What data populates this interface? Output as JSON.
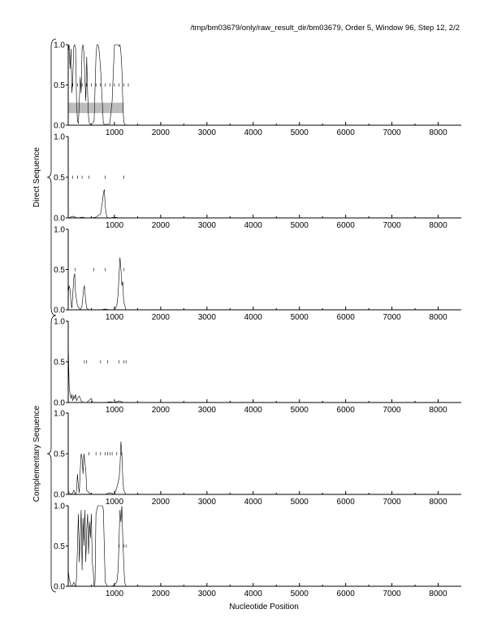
{
  "header": {
    "title": "/tmp/bm03679/only/raw_result_dir/bm03679, Order 5, Window 96, Step 12, 2/2"
  },
  "groups": [
    {
      "label": "Direct Sequence",
      "panels": [
        0,
        1,
        2
      ]
    },
    {
      "label": "Complementary Sequence",
      "panels": [
        3,
        4,
        5
      ]
    }
  ],
  "chart_data": {
    "type": "line",
    "title": "/tmp/bm03679/only/raw_result_dir/bm03679, Order 5, Window 96, Step 12, 2/2",
    "xlabel": "Nucleotide Position",
    "ylabel": "",
    "xlim": [
      0,
      8500
    ],
    "ylim": [
      0,
      1
    ],
    "x_ticks": [
      1000,
      2000,
      3000,
      4000,
      5000,
      6000,
      7000,
      8000
    ],
    "x_tick_labels": [
      "1000",
      "2000",
      "3000",
      "4000",
      "5000",
      "6000",
      "7000",
      "8000"
    ],
    "y_ticks": [
      0,
      0.5,
      1
    ],
    "y_tick_labels": [
      "0.0",
      "0.5",
      "1.0"
    ],
    "grid": false,
    "colors": {
      "line": "#000000",
      "shade": "#bdbdbd",
      "axis": "#000000"
    },
    "panels": [
      {
        "group": "Direct Sequence",
        "shaded_region": {
          "x": [
            0,
            1200
          ],
          "y": [
            0.15,
            0.28
          ]
        },
        "markers_at_half": [
          100,
          200,
          300,
          400,
          500,
          600,
          700,
          800,
          900,
          1000,
          1100,
          1200,
          1300
        ],
        "series": [
          {
            "x": [
              0,
              20,
              40,
              60,
              80,
              100,
              120,
              140,
              160,
              180,
              200,
              220,
              240,
              260,
              280,
              300,
              320,
              340,
              360,
              380,
              400,
              420,
              440,
              460,
              480,
              520,
              560,
              600,
              620,
              640,
              660,
              700,
              760,
              800,
              840,
              900,
              950,
              1000,
              1040,
              1080,
              1100,
              1120,
              1140,
              1160,
              1180,
              1200,
              1220,
              1240,
              1300
            ],
            "y": [
              0.9,
              1.0,
              0.7,
              0.95,
              0.4,
              0.6,
              0.98,
              1.0,
              0.95,
              0.3,
              0.05,
              0.02,
              0.3,
              0.6,
              0.4,
              0.95,
              1.0,
              0.9,
              0.6,
              0.3,
              0.85,
              0.4,
              0.1,
              0.02,
              0.01,
              0.02,
              0.05,
              0.85,
              1.0,
              1.0,
              0.98,
              0.7,
              0.02,
              0.01,
              0.01,
              0.02,
              0.3,
              1.0,
              1.0,
              1.0,
              0.98,
              1.0,
              0.9,
              0.7,
              0.3,
              0.05,
              0.01,
              0.0,
              0.0
            ]
          }
        ]
      },
      {
        "group": "Direct Sequence",
        "markers_at_half": [
          100,
          200,
          300,
          450,
          800,
          1200
        ],
        "series": [
          {
            "x": [
              0,
              100,
              200,
              300,
              400,
              500,
              600,
              700,
              740,
              760,
              780,
              800,
              820,
              840,
              860,
              900,
              1000,
              1100,
              1200,
              1300
            ],
            "y": [
              0.0,
              0.02,
              0.0,
              0.01,
              0.0,
              0.0,
              0.01,
              0.05,
              0.2,
              0.3,
              0.35,
              0.15,
              0.05,
              0.01,
              0.0,
              0.0,
              0.01,
              0.0,
              0.0,
              0.0
            ]
          }
        ]
      },
      {
        "group": "Direct Sequence",
        "markers_at_half": [
          150,
          550,
          800,
          1200
        ],
        "series": [
          {
            "x": [
              0,
              20,
              40,
              60,
              80,
              100,
              120,
              140,
              160,
              200,
              260,
              300,
              330,
              350,
              380,
              400,
              450,
              500,
              600,
              700,
              800,
              900,
              1000,
              1050,
              1080,
              1100,
              1120,
              1140,
              1160,
              1180,
              1200,
              1250,
              1300
            ],
            "y": [
              0.2,
              0.3,
              0.25,
              0.1,
              0.02,
              0.2,
              0.4,
              0.45,
              0.2,
              0.05,
              0.0,
              0.05,
              0.25,
              0.3,
              0.1,
              0.02,
              0.0,
              0.0,
              0.0,
              0.0,
              0.01,
              0.0,
              0.0,
              0.05,
              0.2,
              0.45,
              0.65,
              0.5,
              0.3,
              0.35,
              0.1,
              0.0,
              0.0
            ]
          }
        ]
      },
      {
        "group": "Complementary Sequence",
        "markers_at_half": [
          350,
          400,
          700,
          850,
          1100,
          1200,
          1250
        ],
        "series": [
          {
            "x": [
              0,
              20,
              40,
              60,
              80,
              100,
              120,
              140,
              160,
              180,
              200,
              240,
              280,
              320,
              400,
              500,
              520,
              540,
              600,
              700,
              800,
              900,
              1000,
              1100,
              1200,
              1300
            ],
            "y": [
              0.75,
              0.2,
              0.1,
              0.05,
              0.1,
              0.02,
              0.08,
              0.05,
              0.1,
              0.02,
              0.05,
              0.08,
              0.02,
              0.0,
              0.0,
              0.05,
              0.02,
              0.0,
              0.0,
              0.0,
              0.0,
              0.01,
              0.0,
              0.02,
              0.0,
              0.0
            ]
          }
        ]
      },
      {
        "group": "Complementary Sequence",
        "markers_at_half": [
          450,
          600,
          700,
          800,
          850,
          900,
          950,
          1050,
          1150
        ],
        "series": [
          {
            "x": [
              0,
              20,
              40,
              60,
              80,
              100,
              120,
              140,
              160,
              180,
              200,
              220,
              240,
              260,
              280,
              300,
              320,
              340,
              360,
              380,
              400,
              450,
              500,
              600,
              700,
              800,
              900,
              1000,
              1060,
              1100,
              1120,
              1140,
              1160,
              1180,
              1200,
              1250,
              1300
            ],
            "y": [
              0.05,
              0.02,
              0.01,
              0.0,
              0.01,
              0.02,
              0.05,
              0.02,
              0.0,
              0.05,
              0.25,
              0.1,
              0.02,
              0.3,
              0.5,
              0.45,
              0.25,
              0.5,
              0.4,
              0.3,
              0.05,
              0.02,
              0.0,
              0.0,
              0.0,
              0.0,
              0.02,
              0.0,
              0.1,
              0.2,
              0.35,
              0.65,
              0.5,
              0.2,
              0.05,
              0.0,
              0.0
            ]
          }
        ]
      },
      {
        "group": "Complementary Sequence",
        "markers_at_half": [
          1100,
          1200,
          1250
        ],
        "series": [
          {
            "x": [
              0,
              20,
              40,
              60,
              80,
              100,
              120,
              140,
              160,
              180,
              200,
              220,
              240,
              260,
              280,
              300,
              320,
              340,
              360,
              380,
              400,
              420,
              440,
              460,
              480,
              500,
              520,
              540,
              560,
              580,
              600,
              640,
              680,
              700,
              740,
              760,
              800,
              850,
              900,
              950,
              1000,
              1050,
              1080,
              1100,
              1120,
              1140,
              1160,
              1180,
              1200,
              1220,
              1250,
              1300
            ],
            "y": [
              0.2,
              0.1,
              0.05,
              0.0,
              0.0,
              0.02,
              0.05,
              0.02,
              0.0,
              0.1,
              0.5,
              0.9,
              0.3,
              0.6,
              0.95,
              0.2,
              0.85,
              0.5,
              0.95,
              0.3,
              0.7,
              0.9,
              0.4,
              0.8,
              0.6,
              0.9,
              0.3,
              0.2,
              0.0,
              0.05,
              0.9,
              1.0,
              1.0,
              1.0,
              1.0,
              0.95,
              0.05,
              0.0,
              0.0,
              0.0,
              0.02,
              0.05,
              0.2,
              0.6,
              0.95,
              0.8,
              1.0,
              0.6,
              0.3,
              0.05,
              0.0,
              0.0
            ]
          }
        ]
      }
    ]
  }
}
